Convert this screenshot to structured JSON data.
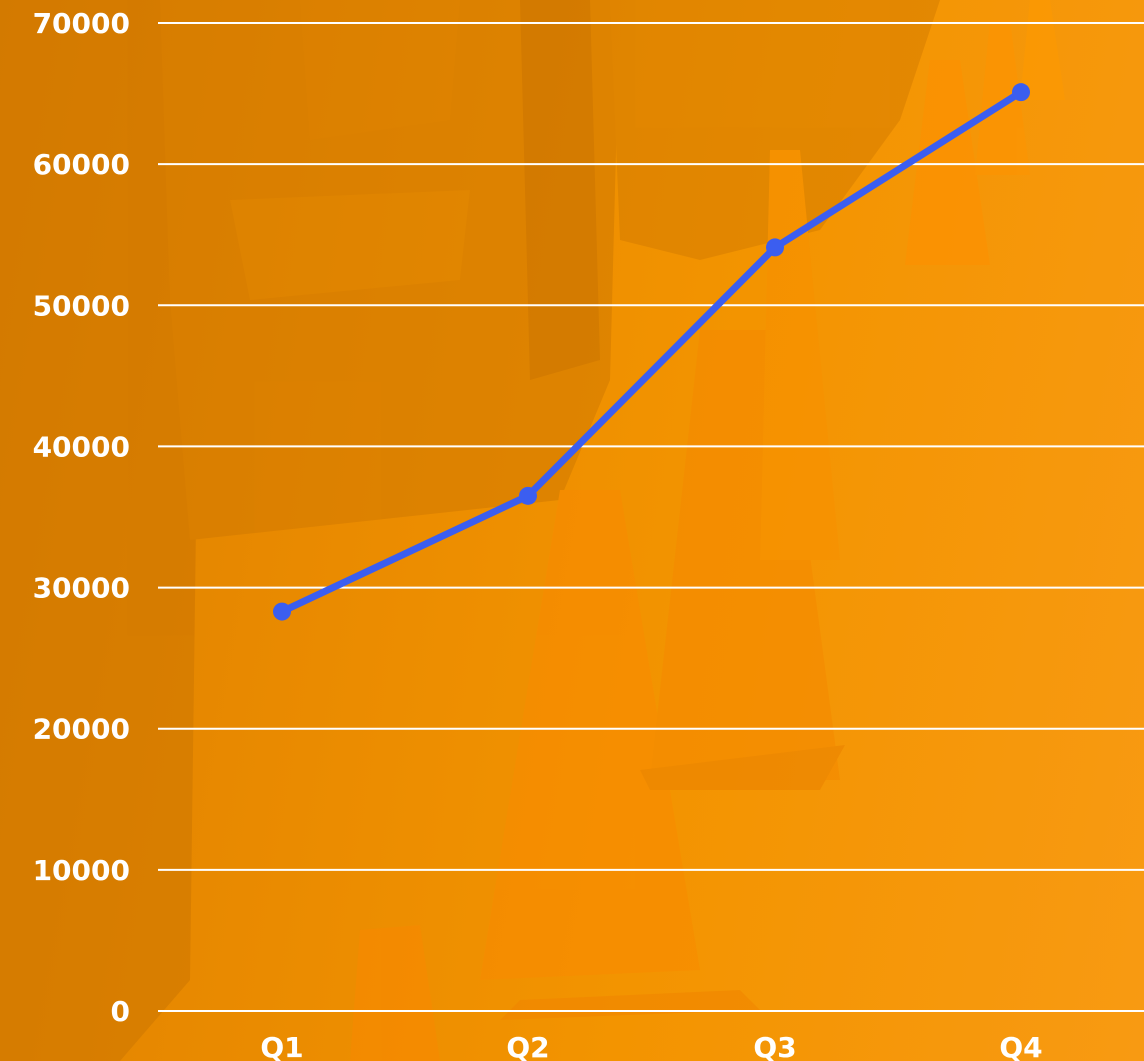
{
  "colors": {
    "background": "#f39400",
    "series_line": "#3b5ef0",
    "gridline": "#ffffff",
    "tick_text": "#ffffff"
  },
  "chart_data": {
    "type": "line",
    "title": "",
    "xlabel": "",
    "ylabel": "",
    "categories": [
      "Q1",
      "Q2",
      "Q3",
      "Q4"
    ],
    "series": [
      {
        "values": [
          28300,
          36500,
          54100,
          65100
        ]
      }
    ],
    "ylim": [
      0,
      70000
    ],
    "yticks": [
      "0",
      "10000",
      "20000",
      "30000",
      "40000",
      "50000",
      "60000",
      "70000"
    ],
    "grid": true,
    "legend": "none"
  }
}
